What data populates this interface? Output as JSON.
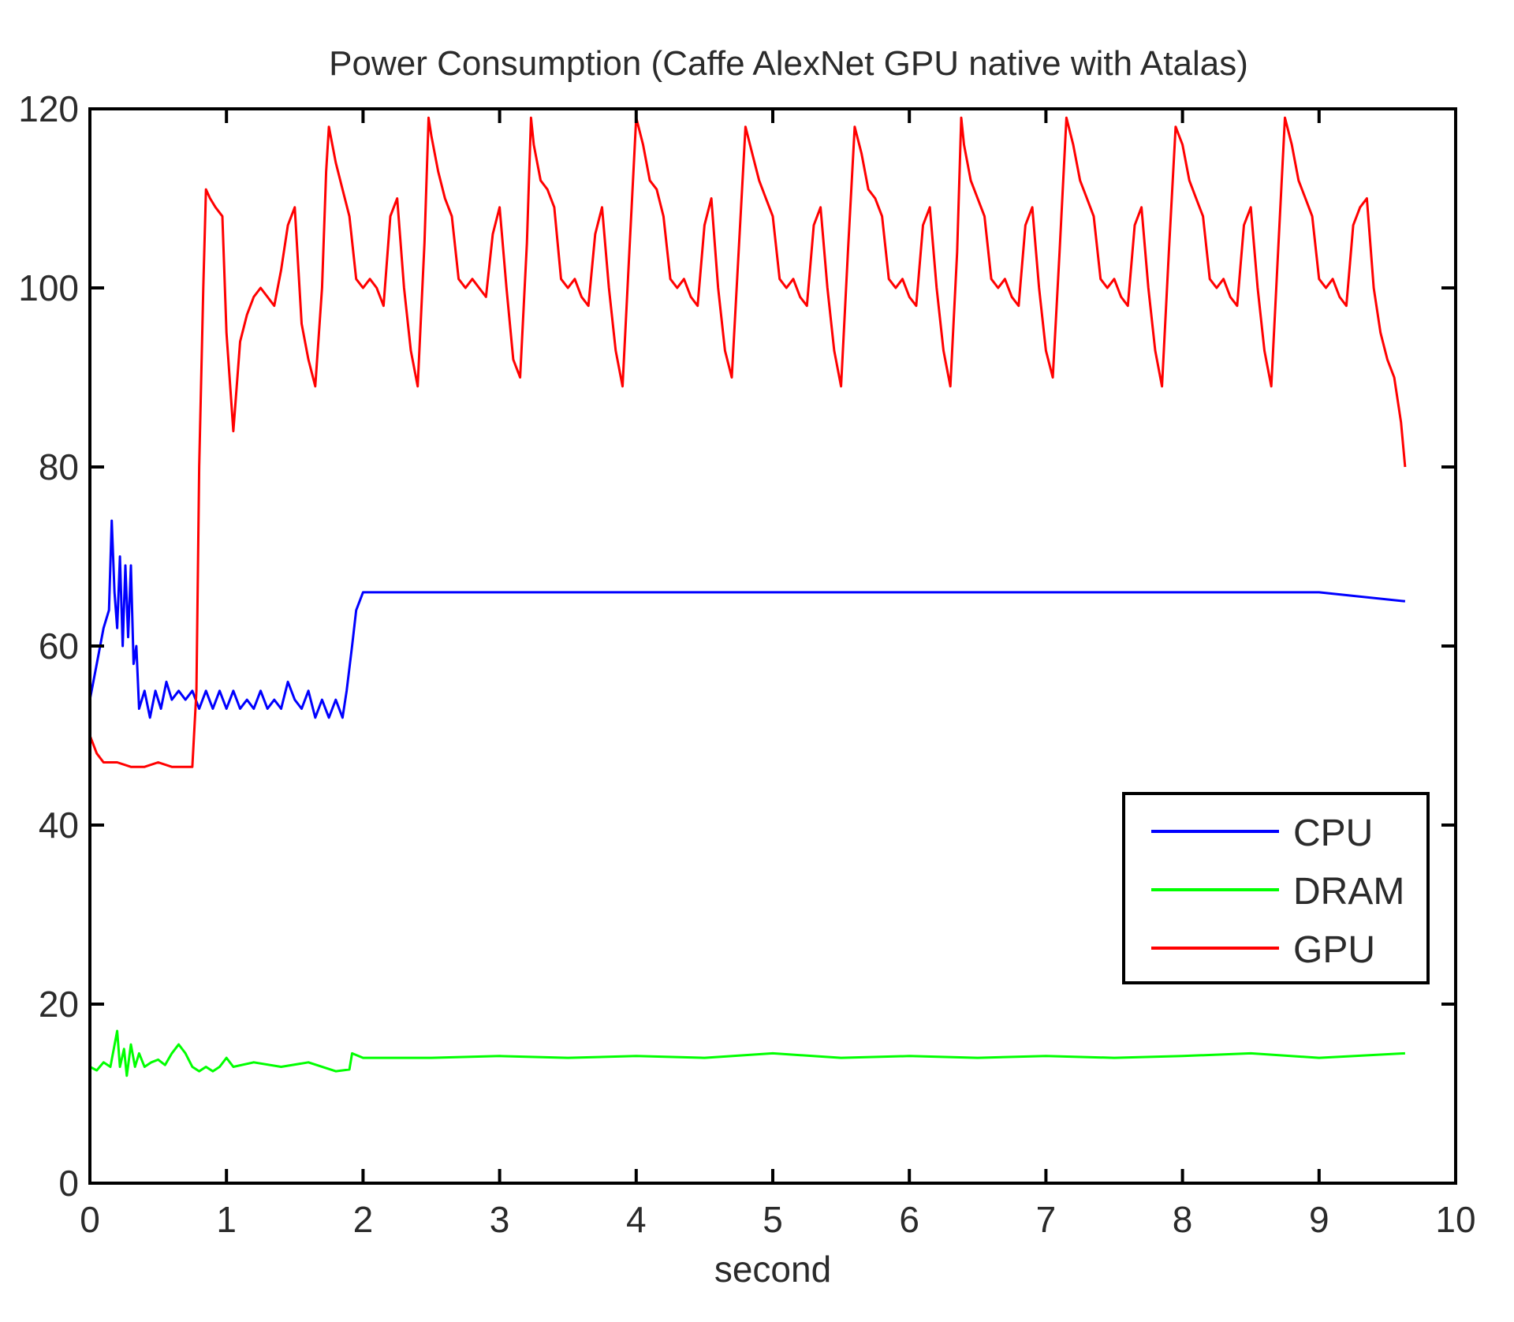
{
  "chart_data": {
    "type": "line",
    "title": "Power Consumption (Caffe AlexNet GPU native with Atalas)",
    "xlabel": "second",
    "ylabel": "",
    "xlim": [
      0,
      10
    ],
    "ylim": [
      0,
      120
    ],
    "xticks": [
      0,
      1,
      2,
      3,
      4,
      5,
      6,
      7,
      8,
      9,
      10
    ],
    "yticks": [
      0,
      20,
      40,
      60,
      80,
      100,
      120
    ],
    "grid": false,
    "legend_position": "lower-right",
    "series": [
      {
        "name": "CPU",
        "color": "#0000ff",
        "points": [
          [
            0.0,
            54
          ],
          [
            0.05,
            58
          ],
          [
            0.1,
            62
          ],
          [
            0.14,
            64
          ],
          [
            0.16,
            74
          ],
          [
            0.18,
            66
          ],
          [
            0.2,
            62
          ],
          [
            0.22,
            70
          ],
          [
            0.24,
            60
          ],
          [
            0.26,
            69
          ],
          [
            0.28,
            61
          ],
          [
            0.3,
            69
          ],
          [
            0.32,
            58
          ],
          [
            0.34,
            60
          ],
          [
            0.36,
            53
          ],
          [
            0.4,
            55
          ],
          [
            0.44,
            52
          ],
          [
            0.48,
            55
          ],
          [
            0.52,
            53
          ],
          [
            0.56,
            56
          ],
          [
            0.6,
            54
          ],
          [
            0.65,
            55
          ],
          [
            0.7,
            54
          ],
          [
            0.75,
            55
          ],
          [
            0.8,
            53
          ],
          [
            0.85,
            55
          ],
          [
            0.9,
            53
          ],
          [
            0.95,
            55
          ],
          [
            1.0,
            53
          ],
          [
            1.05,
            55
          ],
          [
            1.1,
            53
          ],
          [
            1.15,
            54
          ],
          [
            1.2,
            53
          ],
          [
            1.25,
            55
          ],
          [
            1.3,
            53
          ],
          [
            1.35,
            54
          ],
          [
            1.4,
            53
          ],
          [
            1.45,
            56
          ],
          [
            1.5,
            54
          ],
          [
            1.55,
            53
          ],
          [
            1.6,
            55
          ],
          [
            1.65,
            52
          ],
          [
            1.7,
            54
          ],
          [
            1.75,
            52
          ],
          [
            1.8,
            54
          ],
          [
            1.85,
            52
          ],
          [
            1.88,
            55
          ],
          [
            1.92,
            60
          ],
          [
            1.95,
            64
          ],
          [
            2.0,
            66
          ],
          [
            2.3,
            66
          ],
          [
            3.0,
            66
          ],
          [
            4.0,
            66
          ],
          [
            5.0,
            66
          ],
          [
            6.0,
            66
          ],
          [
            7.0,
            66
          ],
          [
            8.0,
            66
          ],
          [
            9.0,
            66
          ],
          [
            9.63,
            65
          ]
        ]
      },
      {
        "name": "DRAM",
        "color": "#00ff00",
        "points": [
          [
            0.0,
            13
          ],
          [
            0.05,
            12.6
          ],
          [
            0.1,
            13.5
          ],
          [
            0.15,
            13
          ],
          [
            0.2,
            17
          ],
          [
            0.22,
            13
          ],
          [
            0.25,
            15
          ],
          [
            0.27,
            12
          ],
          [
            0.3,
            15.5
          ],
          [
            0.33,
            13
          ],
          [
            0.36,
            14.5
          ],
          [
            0.4,
            13
          ],
          [
            0.45,
            13.5
          ],
          [
            0.5,
            13.8
          ],
          [
            0.55,
            13.2
          ],
          [
            0.6,
            14.5
          ],
          [
            0.65,
            15.5
          ],
          [
            0.7,
            14.5
          ],
          [
            0.75,
            13
          ],
          [
            0.8,
            12.5
          ],
          [
            0.85,
            13
          ],
          [
            0.9,
            12.5
          ],
          [
            0.95,
            13
          ],
          [
            1.0,
            14
          ],
          [
            1.05,
            13
          ],
          [
            1.2,
            13.5
          ],
          [
            1.4,
            13
          ],
          [
            1.6,
            13.5
          ],
          [
            1.8,
            12.5
          ],
          [
            1.9,
            12.7
          ],
          [
            1.92,
            14.5
          ],
          [
            2.0,
            14
          ],
          [
            2.5,
            14
          ],
          [
            3.0,
            14.2
          ],
          [
            3.5,
            14
          ],
          [
            4.0,
            14.2
          ],
          [
            4.5,
            14
          ],
          [
            5.0,
            14.5
          ],
          [
            5.5,
            14
          ],
          [
            6.0,
            14.2
          ],
          [
            6.5,
            14
          ],
          [
            7.0,
            14.2
          ],
          [
            7.5,
            14
          ],
          [
            8.0,
            14.2
          ],
          [
            8.5,
            14.5
          ],
          [
            9.0,
            14
          ],
          [
            9.63,
            14.5
          ]
        ]
      },
      {
        "name": "GPU",
        "color": "#ff0000",
        "points": [
          [
            0.0,
            50
          ],
          [
            0.05,
            48
          ],
          [
            0.1,
            47
          ],
          [
            0.2,
            47
          ],
          [
            0.3,
            46.5
          ],
          [
            0.4,
            46.5
          ],
          [
            0.5,
            47
          ],
          [
            0.6,
            46.5
          ],
          [
            0.7,
            46.5
          ],
          [
            0.75,
            46.5
          ],
          [
            0.78,
            55
          ],
          [
            0.8,
            80
          ],
          [
            0.83,
            100
          ],
          [
            0.85,
            111
          ],
          [
            0.88,
            110
          ],
          [
            0.92,
            109
          ],
          [
            0.97,
            108
          ],
          [
            1.0,
            95
          ],
          [
            1.05,
            84
          ],
          [
            1.1,
            94
          ],
          [
            1.15,
            97
          ],
          [
            1.2,
            99
          ],
          [
            1.25,
            100
          ],
          [
            1.3,
            99
          ],
          [
            1.35,
            98
          ],
          [
            1.4,
            102
          ],
          [
            1.45,
            107
          ],
          [
            1.5,
            109
          ],
          [
            1.55,
            96
          ],
          [
            1.6,
            92
          ],
          [
            1.65,
            89
          ],
          [
            1.7,
            100
          ],
          [
            1.73,
            113
          ],
          [
            1.75,
            118
          ],
          [
            1.8,
            114
          ],
          [
            1.85,
            111
          ],
          [
            1.9,
            108
          ],
          [
            1.95,
            101
          ],
          [
            2.0,
            100
          ],
          [
            2.05,
            101
          ],
          [
            2.1,
            100
          ],
          [
            2.15,
            98
          ],
          [
            2.2,
            108
          ],
          [
            2.25,
            110
          ],
          [
            2.3,
            100
          ],
          [
            2.35,
            93
          ],
          [
            2.4,
            89
          ],
          [
            2.45,
            105
          ],
          [
            2.48,
            119
          ],
          [
            2.5,
            117
          ],
          [
            2.55,
            113
          ],
          [
            2.6,
            110
          ],
          [
            2.65,
            108
          ],
          [
            2.7,
            101
          ],
          [
            2.75,
            100
          ],
          [
            2.8,
            101
          ],
          [
            2.85,
            100
          ],
          [
            2.9,
            99
          ],
          [
            2.95,
            106
          ],
          [
            3.0,
            109
          ],
          [
            3.05,
            100
          ],
          [
            3.1,
            92
          ],
          [
            3.15,
            90
          ],
          [
            3.2,
            105
          ],
          [
            3.23,
            119
          ],
          [
            3.25,
            116
          ],
          [
            3.3,
            112
          ],
          [
            3.35,
            111
          ],
          [
            3.4,
            109
          ],
          [
            3.45,
            101
          ],
          [
            3.5,
            100
          ],
          [
            3.55,
            101
          ],
          [
            3.6,
            99
          ],
          [
            3.65,
            98
          ],
          [
            3.7,
            106
          ],
          [
            3.75,
            109
          ],
          [
            3.8,
            100
          ],
          [
            3.85,
            93
          ],
          [
            3.9,
            89
          ],
          [
            3.95,
            104
          ],
          [
            4.0,
            119
          ],
          [
            4.05,
            116
          ],
          [
            4.1,
            112
          ],
          [
            4.15,
            111
          ],
          [
            4.2,
            108
          ],
          [
            4.25,
            101
          ],
          [
            4.3,
            100
          ],
          [
            4.35,
            101
          ],
          [
            4.4,
            99
          ],
          [
            4.45,
            98
          ],
          [
            4.5,
            107
          ],
          [
            4.55,
            110
          ],
          [
            4.6,
            100
          ],
          [
            4.65,
            93
          ],
          [
            4.7,
            90
          ],
          [
            4.75,
            104
          ],
          [
            4.8,
            118
          ],
          [
            4.85,
            115
          ],
          [
            4.9,
            112
          ],
          [
            4.95,
            110
          ],
          [
            5.0,
            108
          ],
          [
            5.05,
            101
          ],
          [
            5.1,
            100
          ],
          [
            5.15,
            101
          ],
          [
            5.2,
            99
          ],
          [
            5.25,
            98
          ],
          [
            5.3,
            107
          ],
          [
            5.35,
            109
          ],
          [
            5.4,
            100
          ],
          [
            5.45,
            93
          ],
          [
            5.5,
            89
          ],
          [
            5.55,
            104
          ],
          [
            5.6,
            118
          ],
          [
            5.65,
            115
          ],
          [
            5.7,
            111
          ],
          [
            5.75,
            110
          ],
          [
            5.8,
            108
          ],
          [
            5.85,
            101
          ],
          [
            5.9,
            100
          ],
          [
            5.95,
            101
          ],
          [
            6.0,
            99
          ],
          [
            6.05,
            98
          ],
          [
            6.1,
            107
          ],
          [
            6.15,
            109
          ],
          [
            6.2,
            100
          ],
          [
            6.25,
            93
          ],
          [
            6.3,
            89
          ],
          [
            6.35,
            104
          ],
          [
            6.38,
            119
          ],
          [
            6.4,
            116
          ],
          [
            6.45,
            112
          ],
          [
            6.5,
            110
          ],
          [
            6.55,
            108
          ],
          [
            6.6,
            101
          ],
          [
            6.65,
            100
          ],
          [
            6.7,
            101
          ],
          [
            6.75,
            99
          ],
          [
            6.8,
            98
          ],
          [
            6.85,
            107
          ],
          [
            6.9,
            109
          ],
          [
            6.95,
            100
          ],
          [
            7.0,
            93
          ],
          [
            7.05,
            90
          ],
          [
            7.1,
            104
          ],
          [
            7.15,
            119
          ],
          [
            7.2,
            116
          ],
          [
            7.25,
            112
          ],
          [
            7.3,
            110
          ],
          [
            7.35,
            108
          ],
          [
            7.4,
            101
          ],
          [
            7.45,
            100
          ],
          [
            7.5,
            101
          ],
          [
            7.55,
            99
          ],
          [
            7.6,
            98
          ],
          [
            7.65,
            107
          ],
          [
            7.7,
            109
          ],
          [
            7.75,
            100
          ],
          [
            7.8,
            93
          ],
          [
            7.85,
            89
          ],
          [
            7.9,
            104
          ],
          [
            7.95,
            118
          ],
          [
            8.0,
            116
          ],
          [
            8.05,
            112
          ],
          [
            8.1,
            110
          ],
          [
            8.15,
            108
          ],
          [
            8.2,
            101
          ],
          [
            8.25,
            100
          ],
          [
            8.3,
            101
          ],
          [
            8.35,
            99
          ],
          [
            8.4,
            98
          ],
          [
            8.45,
            107
          ],
          [
            8.5,
            109
          ],
          [
            8.55,
            100
          ],
          [
            8.6,
            93
          ],
          [
            8.65,
            89
          ],
          [
            8.7,
            104
          ],
          [
            8.75,
            119
          ],
          [
            8.8,
            116
          ],
          [
            8.85,
            112
          ],
          [
            8.9,
            110
          ],
          [
            8.95,
            108
          ],
          [
            9.0,
            101
          ],
          [
            9.05,
            100
          ],
          [
            9.1,
            101
          ],
          [
            9.15,
            99
          ],
          [
            9.2,
            98
          ],
          [
            9.25,
            107
          ],
          [
            9.3,
            109
          ],
          [
            9.35,
            110
          ],
          [
            9.4,
            100
          ],
          [
            9.45,
            95
          ],
          [
            9.5,
            92
          ],
          [
            9.55,
            90
          ],
          [
            9.6,
            85
          ],
          [
            9.63,
            80
          ]
        ]
      }
    ]
  }
}
